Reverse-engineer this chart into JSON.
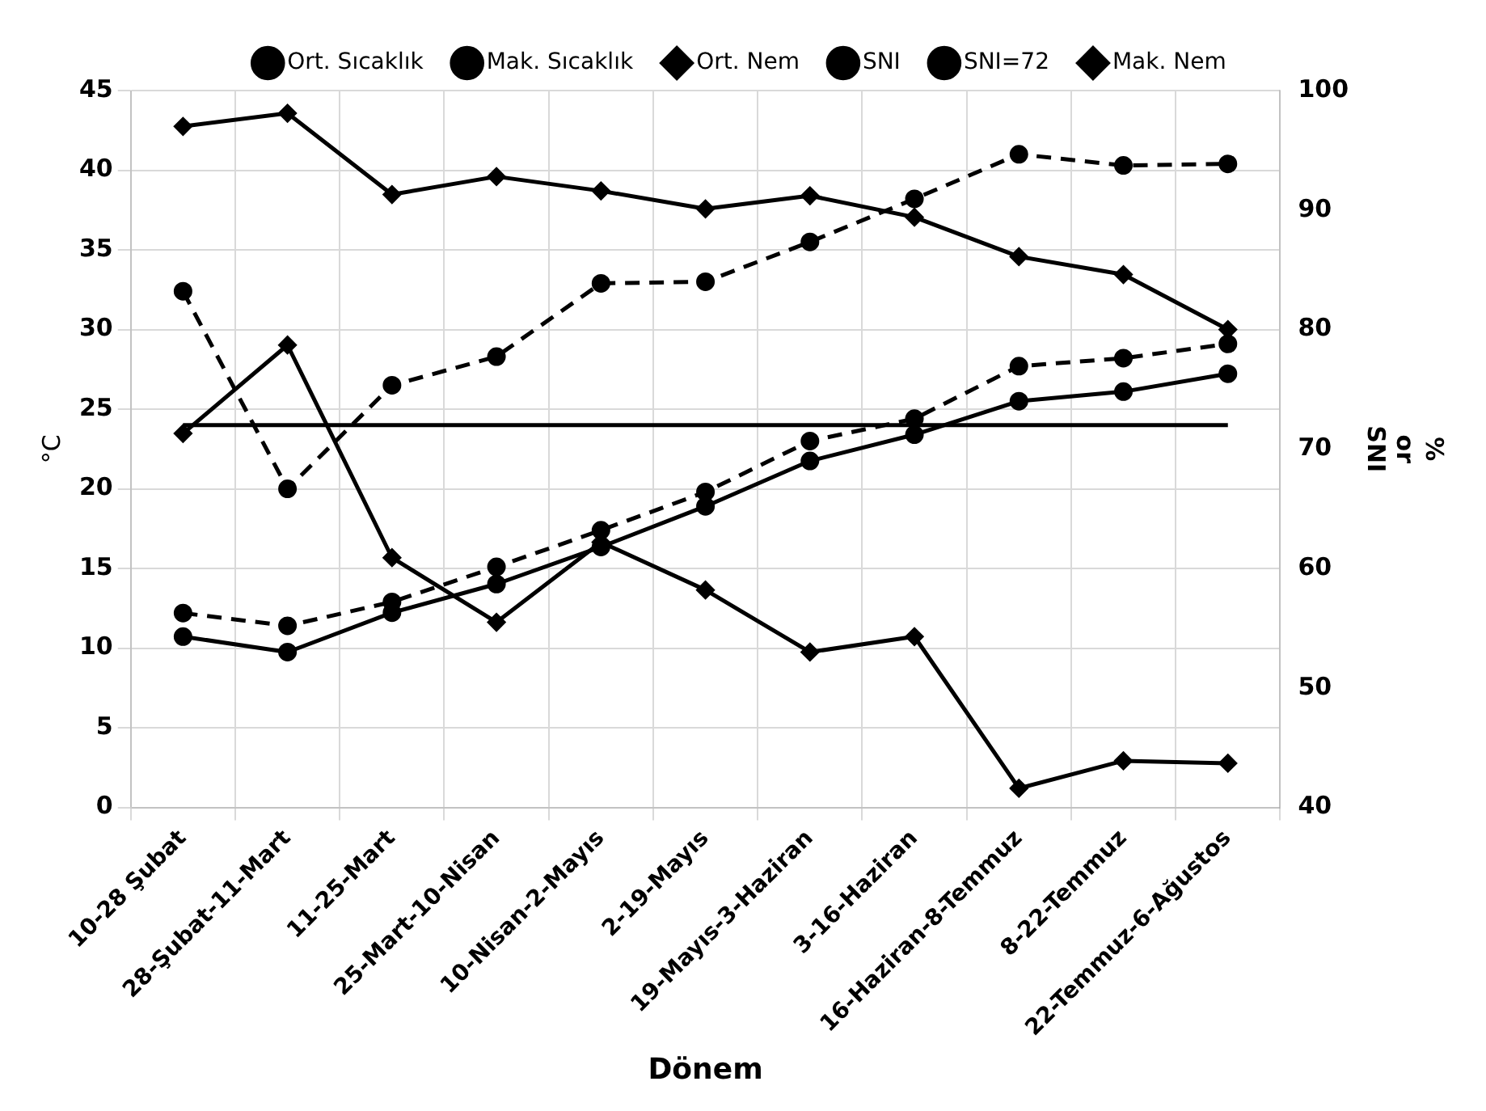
{
  "chart_data": {
    "type": "line",
    "xlabel": "Dönem",
    "ylabel": "°C",
    "y2label": "% or SNI",
    "categories": [
      "10-28 Şubat",
      "28-Şubat-11-Mart",
      "11-25-Mart",
      "25-Mart-10-Nisan",
      "10-Nisan-2-Mayıs",
      "2-19-Mayıs",
      "19-Mayıs-3-Haziran",
      "3-16-Haziran",
      "16-Haziran-8-Temmuz",
      "8-22-Temmuz",
      "22-Temmuz-6-Ağustos"
    ],
    "series": [
      {
        "name": "Ort. Sıcaklık",
        "color": "#000000",
        "marker": "circle",
        "line_style": "dashed",
        "values": [
          12.2,
          11.4,
          12.9,
          15.1,
          17.4,
          19.8,
          23,
          24.4,
          27.7,
          28.2,
          29.1
        ]
      },
      {
        "name": "Mak. Sıcaklık",
        "color": "#000000",
        "marker": "circle",
        "line_style": "dashed",
        "values": [
          32.4,
          20,
          26.5,
          28.3,
          32.9,
          33,
          35.5,
          38.2,
          41,
          40.3,
          40.4
        ]
      },
      {
        "name": "Ort. Nem",
        "color": "#000000",
        "marker": "diamond",
        "line_style": "solid",
        "axis": "y2",
        "values": [
          71.3,
          78.7,
          60.9,
          55.5,
          62.2,
          58.2,
          53,
          54.3,
          41.6,
          43.9,
          43.7
        ]
      },
      {
        "name": "SNI",
        "color": "#000000",
        "marker": "circle",
        "line_style": "solid",
        "axis": "y2",
        "values": [
          54.3,
          53,
          56.3,
          58.7,
          61.8,
          65.2,
          69,
          71.2,
          74,
          74.8,
          76.3
        ]
      },
      {
        "name": "SNI=72",
        "color": "#000000",
        "marker": "none",
        "line_style": "solid",
        "axis": "y2",
        "values": [
          72,
          72,
          72,
          72,
          72,
          72,
          72,
          72,
          72,
          72,
          72
        ]
      },
      {
        "name": "Mak. Nem",
        "color": "#000000",
        "marker": "diamond",
        "line_style": "solid",
        "axis": "y2",
        "values": [
          97,
          98.1,
          91.3,
          92.8,
          91.6,
          90.1,
          91.2,
          89.4,
          86.1,
          84.6,
          80
        ]
      }
    ],
    "ylim": [
      0,
      45
    ],
    "yticks": [
      0,
      5,
      10,
      15,
      20,
      25,
      30,
      35,
      40,
      45
    ],
    "y2lim": [
      40,
      100
    ],
    "y2ticks": [
      40,
      50,
      60,
      70,
      80,
      90,
      100
    ],
    "grid": true,
    "legend": "top"
  }
}
